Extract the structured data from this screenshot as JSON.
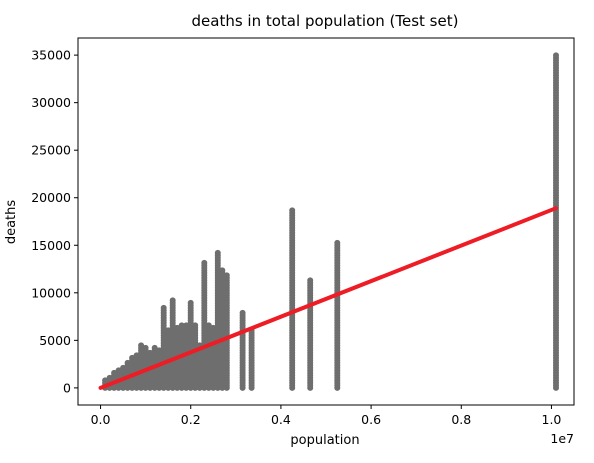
{
  "chart_data": {
    "type": "scatter",
    "title": "deaths in total population (Test set)",
    "xlabel": "population",
    "ylabel": "deaths",
    "x_offset_label": "1e7",
    "xlim": [
      -0.05,
      1.05
    ],
    "ylim": [
      -1800,
      36800
    ],
    "x_ticks": [
      {
        "value": 0.0,
        "label": "0.0"
      },
      {
        "value": 0.2,
        "label": "0.2"
      },
      {
        "value": 0.4,
        "label": "0.4"
      },
      {
        "value": 0.6,
        "label": "0.6"
      },
      {
        "value": 0.8,
        "label": "0.8"
      },
      {
        "value": 1.0,
        "label": "1.0"
      }
    ],
    "y_ticks": [
      {
        "value": 0,
        "label": "0"
      },
      {
        "value": 5000,
        "label": "5000"
      },
      {
        "value": 10000,
        "label": "10000"
      },
      {
        "value": 15000,
        "label": "15000"
      },
      {
        "value": 20000,
        "label": "20000"
      },
      {
        "value": 25000,
        "label": "25000"
      },
      {
        "value": 30000,
        "label": "30000"
      },
      {
        "value": 35000,
        "label": "35000"
      }
    ],
    "grid": false,
    "point_color": "#6e6e6e",
    "fit_line_color": "#ee1c25",
    "scatter_columns": [
      {
        "x": 0.01,
        "ymin": 0,
        "ymax": 800
      },
      {
        "x": 0.02,
        "ymin": 0,
        "ymax": 1300
      },
      {
        "x": 0.03,
        "ymin": 0,
        "ymax": 1600
      },
      {
        "x": 0.04,
        "ymin": 0,
        "ymax": 1900
      },
      {
        "x": 0.05,
        "ymin": 0,
        "ymax": 2200
      },
      {
        "x": 0.06,
        "ymin": 0,
        "ymax": 2700
      },
      {
        "x": 0.07,
        "ymin": 0,
        "ymax": 3300
      },
      {
        "x": 0.08,
        "ymin": 0,
        "ymax": 3500
      },
      {
        "x": 0.09,
        "ymin": 0,
        "ymax": 4700
      },
      {
        "x": 0.1,
        "ymin": 0,
        "ymax": 4300
      },
      {
        "x": 0.11,
        "ymin": 0,
        "ymax": 3800
      },
      {
        "x": 0.12,
        "ymin": 0,
        "ymax": 4400
      },
      {
        "x": 0.13,
        "ymin": 0,
        "ymax": 4000
      },
      {
        "x": 0.14,
        "ymin": 0,
        "ymax": 8500
      },
      {
        "x": 0.15,
        "ymin": 0,
        "ymax": 6200
      },
      {
        "x": 0.16,
        "ymin": 0,
        "ymax": 9300
      },
      {
        "x": 0.17,
        "ymin": 0,
        "ymax": 6500
      },
      {
        "x": 0.18,
        "ymin": 0,
        "ymax": 6700
      },
      {
        "x": 0.19,
        "ymin": 0,
        "ymax": 6600
      },
      {
        "x": 0.2,
        "ymin": 0,
        "ymax": 9200
      },
      {
        "x": 0.21,
        "ymin": 0,
        "ymax": 6600
      },
      {
        "x": 0.22,
        "ymin": 0,
        "ymax": 4500
      },
      {
        "x": 0.23,
        "ymin": 0,
        "ymax": 13200
      },
      {
        "x": 0.24,
        "ymin": 0,
        "ymax": 6800
      },
      {
        "x": 0.25,
        "ymin": 0,
        "ymax": 6500
      },
      {
        "x": 0.26,
        "ymin": 0,
        "ymax": 14300
      },
      {
        "x": 0.27,
        "ymin": 0,
        "ymax": 12500
      },
      {
        "x": 0.28,
        "ymin": 0,
        "ymax": 12000
      },
      {
        "x": 0.315,
        "ymin": 0,
        "ymax": 8100
      },
      {
        "x": 0.335,
        "ymin": 0,
        "ymax": 6200
      },
      {
        "x": 0.425,
        "ymin": 0,
        "ymax": 18800
      },
      {
        "x": 0.465,
        "ymin": 0,
        "ymax": 11500
      },
      {
        "x": 0.525,
        "ymin": 0,
        "ymax": 15300
      },
      {
        "x": 1.01,
        "ymin": 0,
        "ymax": 35200
      }
    ],
    "fit_line": {
      "x": [
        0.0,
        1.01
      ],
      "y": [
        0,
        18900
      ]
    }
  }
}
